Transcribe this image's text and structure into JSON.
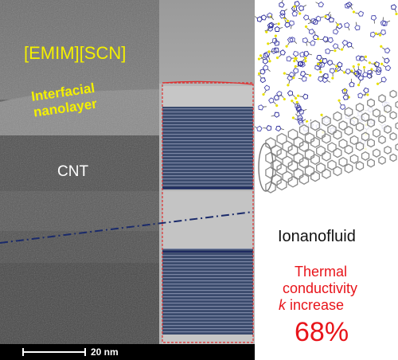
{
  "labels": {
    "ionic_liquid": "[EMIM][SCN]",
    "interfacial_line1": "Interfacial",
    "interfacial_line2": "nanolayer",
    "cnt": "CNT",
    "ionanofluid": "Ionanofluid",
    "thermal_line1": "Thermal",
    "thermal_line2": "conductivity",
    "k_symbol": "k",
    "increase_word": "increase",
    "increase_value": "68%",
    "scale_bar": "20 nm"
  },
  "colors": {
    "label_yellow": "#f4f000",
    "highlight_red": "#e8141a",
    "axis_dash_blue": "#1a2a6a",
    "layer_blue": "#2a3d66"
  }
}
